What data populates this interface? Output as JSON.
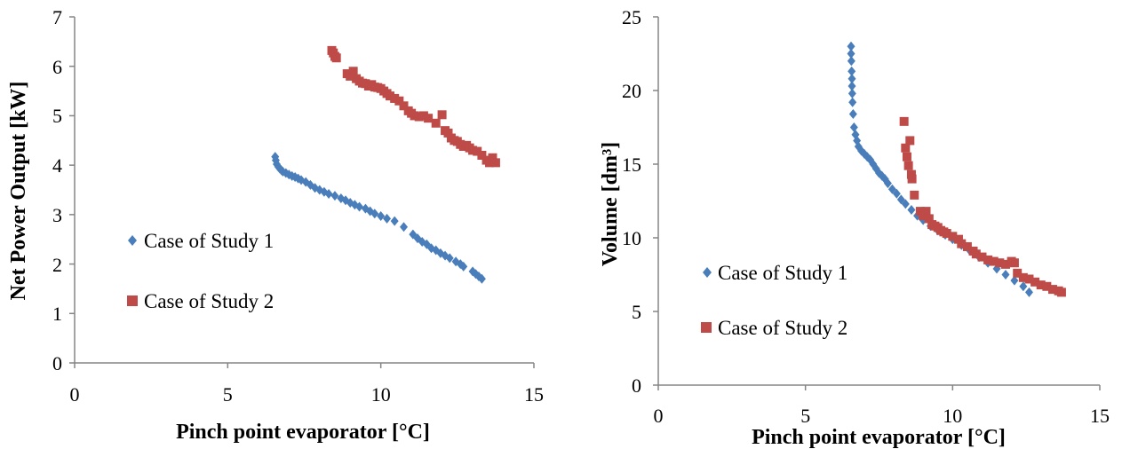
{
  "chart_data": [
    {
      "type": "scatter",
      "xlabel": "Pinch point evaporator [°C]",
      "ylabel": "Net Power Output [kW]",
      "xlim": [
        0,
        15
      ],
      "ylim": [
        0,
        7
      ],
      "xticks": [
        "0",
        "5",
        "10",
        "15"
      ],
      "yticks": [
        "0",
        "1",
        "2",
        "3",
        "4",
        "5",
        "6",
        "7"
      ],
      "grid": false,
      "legend_position": "left",
      "series": [
        {
          "name": "Case of Study 1",
          "color": "#4a7ebb",
          "marker": "diamond",
          "points": [
            [
              6.55,
              4.17
            ],
            [
              6.57,
              4.1
            ],
            [
              6.6,
              4.02
            ],
            [
              6.65,
              3.97
            ],
            [
              6.7,
              3.93
            ],
            [
              6.75,
              3.9
            ],
            [
              6.8,
              3.87
            ],
            [
              6.9,
              3.84
            ],
            [
              7.0,
              3.81
            ],
            [
              7.1,
              3.78
            ],
            [
              7.2,
              3.76
            ],
            [
              7.3,
              3.73
            ],
            [
              7.4,
              3.7
            ],
            [
              7.55,
              3.66
            ],
            [
              7.7,
              3.6
            ],
            [
              7.85,
              3.54
            ],
            [
              8.0,
              3.5
            ],
            [
              8.15,
              3.46
            ],
            [
              8.3,
              3.42
            ],
            [
              8.5,
              3.38
            ],
            [
              8.7,
              3.33
            ],
            [
              8.85,
              3.29
            ],
            [
              9.0,
              3.24
            ],
            [
              9.15,
              3.2
            ],
            [
              9.3,
              3.16
            ],
            [
              9.5,
              3.12
            ],
            [
              9.65,
              3.07
            ],
            [
              9.8,
              3.02
            ],
            [
              10.0,
              2.97
            ],
            [
              10.2,
              2.92
            ],
            [
              10.45,
              2.87
            ],
            [
              10.75,
              2.75
            ],
            [
              11.05,
              2.6
            ],
            [
              11.2,
              2.52
            ],
            [
              11.35,
              2.45
            ],
            [
              11.5,
              2.4
            ],
            [
              11.65,
              2.32
            ],
            [
              11.8,
              2.28
            ],
            [
              11.95,
              2.22
            ],
            [
              12.1,
              2.17
            ],
            [
              12.25,
              2.12
            ],
            [
              12.45,
              2.05
            ],
            [
              12.6,
              2.0
            ],
            [
              12.7,
              1.95
            ],
            [
              13.0,
              1.85
            ],
            [
              13.1,
              1.8
            ],
            [
              13.2,
              1.75
            ],
            [
              13.3,
              1.7
            ]
          ]
        },
        {
          "name": "Case of Study 2",
          "color": "#be4b48",
          "marker": "square",
          "points": [
            [
              8.4,
              6.32
            ],
            [
              8.45,
              6.27
            ],
            [
              8.5,
              6.2
            ],
            [
              8.55,
              6.17
            ],
            [
              8.9,
              5.85
            ],
            [
              9.0,
              5.8
            ],
            [
              9.1,
              5.9
            ],
            [
              9.2,
              5.75
            ],
            [
              9.3,
              5.7
            ],
            [
              9.4,
              5.66
            ],
            [
              9.5,
              5.65
            ],
            [
              9.6,
              5.6
            ],
            [
              9.7,
              5.63
            ],
            [
              9.8,
              5.58
            ],
            [
              9.9,
              5.57
            ],
            [
              10.0,
              5.55
            ],
            [
              10.1,
              5.5
            ],
            [
              10.2,
              5.45
            ],
            [
              10.3,
              5.4
            ],
            [
              10.45,
              5.35
            ],
            [
              10.6,
              5.3
            ],
            [
              10.75,
              5.2
            ],
            [
              10.9,
              5.1
            ],
            [
              11.0,
              5.05
            ],
            [
              11.1,
              5.0
            ],
            [
              11.25,
              4.98
            ],
            [
              11.4,
              5.0
            ],
            [
              11.55,
              4.95
            ],
            [
              11.8,
              4.85
            ],
            [
              12.0,
              5.02
            ],
            [
              12.1,
              4.7
            ],
            [
              12.2,
              4.65
            ],
            [
              12.3,
              4.55
            ],
            [
              12.4,
              4.5
            ],
            [
              12.5,
              4.48
            ],
            [
              12.6,
              4.42
            ],
            [
              12.7,
              4.38
            ],
            [
              12.8,
              4.4
            ],
            [
              12.9,
              4.35
            ],
            [
              13.0,
              4.3
            ],
            [
              13.15,
              4.28
            ],
            [
              13.3,
              4.2
            ],
            [
              13.45,
              4.1
            ],
            [
              13.55,
              4.05
            ],
            [
              13.65,
              4.15
            ],
            [
              13.75,
              4.05
            ]
          ]
        }
      ]
    },
    {
      "type": "scatter",
      "xlabel": "Pinch point evaporator [°C]",
      "ylabel": "Volume [dm³]",
      "xlim": [
        0,
        15
      ],
      "ylim": [
        0,
        25
      ],
      "xticks": [
        "0",
        "5",
        "10",
        "15"
      ],
      "yticks": [
        "0",
        "5",
        "10",
        "15",
        "20",
        "25"
      ],
      "grid": false,
      "legend_position": "left",
      "series": [
        {
          "name": "Case of Study 1",
          "color": "#4a7ebb",
          "marker": "diamond",
          "points": [
            [
              6.55,
              23.0
            ],
            [
              6.55,
              22.5
            ],
            [
              6.56,
              22.0
            ],
            [
              6.57,
              21.3
            ],
            [
              6.58,
              20.8
            ],
            [
              6.58,
              20.3
            ],
            [
              6.59,
              19.8
            ],
            [
              6.6,
              19.2
            ],
            [
              6.62,
              18.4
            ],
            [
              6.65,
              17.5
            ],
            [
              6.7,
              17.0
            ],
            [
              6.75,
              16.6
            ],
            [
              6.8,
              16.2
            ],
            [
              6.9,
              15.9
            ],
            [
              7.0,
              15.7
            ],
            [
              7.1,
              15.5
            ],
            [
              7.2,
              15.3
            ],
            [
              7.3,
              15.0
            ],
            [
              7.4,
              14.7
            ],
            [
              7.5,
              14.4
            ],
            [
              7.6,
              14.2
            ],
            [
              7.7,
              14.0
            ],
            [
              7.8,
              13.7
            ],
            [
              7.95,
              13.3
            ],
            [
              8.1,
              13.0
            ],
            [
              8.25,
              12.6
            ],
            [
              8.4,
              12.3
            ],
            [
              8.6,
              11.9
            ],
            [
              8.8,
              11.5
            ],
            [
              9.0,
              11.2
            ],
            [
              9.25,
              10.8
            ],
            [
              9.5,
              10.5
            ],
            [
              9.75,
              10.2
            ],
            [
              10.0,
              9.9
            ],
            [
              10.3,
              9.5
            ],
            [
              10.6,
              9.1
            ],
            [
              10.9,
              8.7
            ],
            [
              11.2,
              8.3
            ],
            [
              11.5,
              7.9
            ],
            [
              11.8,
              7.5
            ],
            [
              12.1,
              7.1
            ],
            [
              12.4,
              6.7
            ],
            [
              12.6,
              6.3
            ]
          ]
        },
        {
          "name": "Case of Study 2",
          "color": "#be4b48",
          "marker": "square",
          "points": [
            [
              8.35,
              17.9
            ],
            [
              8.4,
              16.1
            ],
            [
              8.45,
              15.5
            ],
            [
              8.5,
              14.9
            ],
            [
              8.55,
              16.6
            ],
            [
              8.6,
              14.3
            ],
            [
              8.62,
              14.0
            ],
            [
              8.7,
              12.9
            ],
            [
              8.9,
              11.8
            ],
            [
              9.0,
              11.5
            ],
            [
              9.1,
              11.8
            ],
            [
              9.2,
              11.3
            ],
            [
              9.3,
              10.9
            ],
            [
              9.4,
              10.8
            ],
            [
              9.5,
              10.7
            ],
            [
              9.6,
              10.5
            ],
            [
              9.7,
              10.4
            ],
            [
              9.8,
              10.3
            ],
            [
              10.0,
              10.1
            ],
            [
              10.2,
              9.9
            ],
            [
              10.3,
              9.6
            ],
            [
              10.5,
              9.4
            ],
            [
              10.7,
              9.1
            ],
            [
              10.8,
              8.9
            ],
            [
              11.0,
              8.7
            ],
            [
              11.2,
              8.5
            ],
            [
              11.4,
              8.4
            ],
            [
              11.6,
              8.3
            ],
            [
              11.8,
              8.2
            ],
            [
              12.0,
              8.4
            ],
            [
              12.1,
              8.3
            ],
            [
              12.2,
              7.6
            ],
            [
              12.4,
              7.3
            ],
            [
              12.6,
              7.2
            ],
            [
              12.8,
              7.0
            ],
            [
              13.0,
              6.8
            ],
            [
              13.2,
              6.7
            ],
            [
              13.4,
              6.5
            ],
            [
              13.6,
              6.4
            ],
            [
              13.7,
              6.3
            ]
          ]
        }
      ]
    }
  ]
}
